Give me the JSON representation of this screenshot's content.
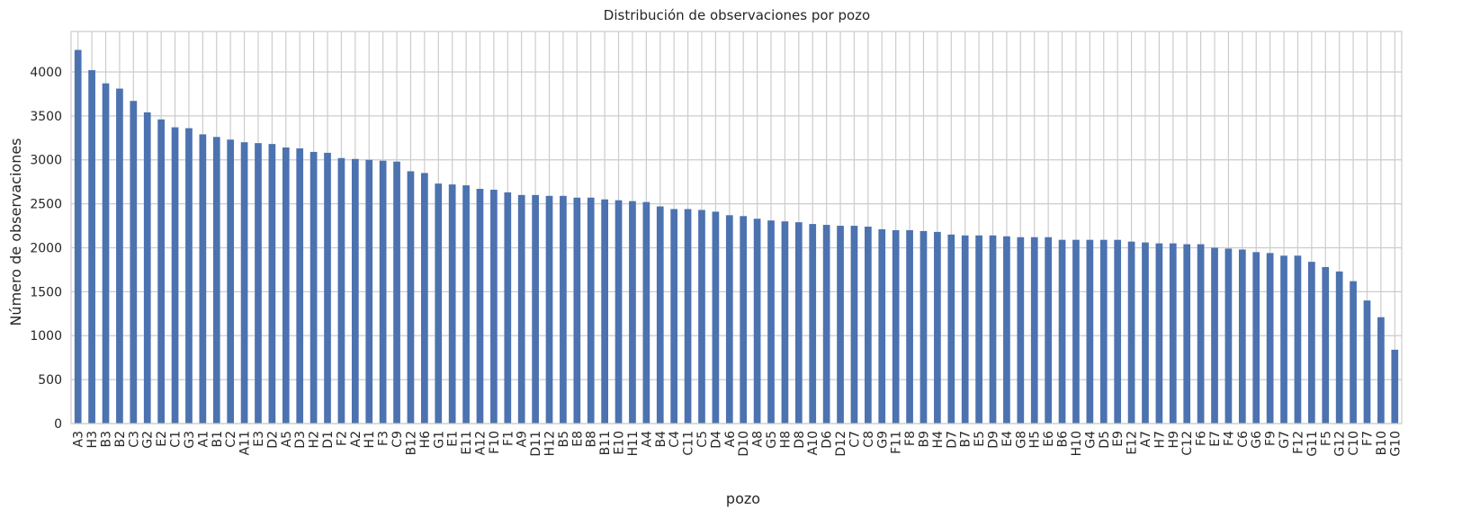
{
  "chart_data": {
    "type": "bar",
    "title": "Distribución de observaciones por pozo",
    "xlabel": "pozo",
    "ylabel": "Número de observaciones",
    "ylim": [
      0,
      4460
    ],
    "yticks": [
      0,
      500,
      1000,
      1500,
      2000,
      2500,
      3000,
      3500,
      4000
    ],
    "grid": true,
    "bar_color": "#4c72b0",
    "grid_color": "#cccccc",
    "categories": [
      "A3",
      "H3",
      "B3",
      "B2",
      "C3",
      "G2",
      "E2",
      "C1",
      "G3",
      "A1",
      "B1",
      "C2",
      "A11",
      "E3",
      "D2",
      "A5",
      "D3",
      "H2",
      "D1",
      "F2",
      "A2",
      "H1",
      "F3",
      "C9",
      "B12",
      "H6",
      "G1",
      "E1",
      "E11",
      "A12",
      "F10",
      "F1",
      "A9",
      "D11",
      "H12",
      "B5",
      "E8",
      "B8",
      "B11",
      "E10",
      "H11",
      "A4",
      "B4",
      "C4",
      "C11",
      "C5",
      "D4",
      "A6",
      "D10",
      "A8",
      "G5",
      "H8",
      "D8",
      "A10",
      "D6",
      "D12",
      "C7",
      "C8",
      "G9",
      "F11",
      "F8",
      "B9",
      "H4",
      "D7",
      "B7",
      "E5",
      "D9",
      "E4",
      "G8",
      "H5",
      "E6",
      "B6",
      "H10",
      "G4",
      "D5",
      "E9",
      "E12",
      "A7",
      "H7",
      "H9",
      "C12",
      "F6",
      "E7",
      "F4",
      "C6",
      "G6",
      "F9",
      "G7",
      "F12",
      "G11",
      "F5",
      "G12",
      "C10",
      "F7",
      "B10",
      "G10"
    ],
    "values": [
      4250,
      4020,
      3870,
      3810,
      3670,
      3540,
      3460,
      3370,
      3360,
      3290,
      3260,
      3230,
      3200,
      3190,
      3180,
      3140,
      3130,
      3090,
      3080,
      3020,
      3010,
      3000,
      2990,
      2980,
      2870,
      2850,
      2730,
      2720,
      2710,
      2670,
      2660,
      2630,
      2600,
      2600,
      2590,
      2590,
      2570,
      2570,
      2550,
      2540,
      2530,
      2520,
      2470,
      2440,
      2440,
      2430,
      2410,
      2370,
      2360,
      2330,
      2310,
      2300,
      2290,
      2270,
      2260,
      2250,
      2250,
      2240,
      2210,
      2200,
      2200,
      2190,
      2180,
      2150,
      2140,
      2140,
      2140,
      2130,
      2120,
      2120,
      2120,
      2090,
      2090,
      2090,
      2090,
      2090,
      2070,
      2060,
      2050,
      2050,
      2040,
      2040,
      2000,
      1990,
      1980,
      1950,
      1940,
      1910,
      1910,
      1840,
      1780,
      1730,
      1620,
      1400,
      1210,
      840
    ]
  }
}
